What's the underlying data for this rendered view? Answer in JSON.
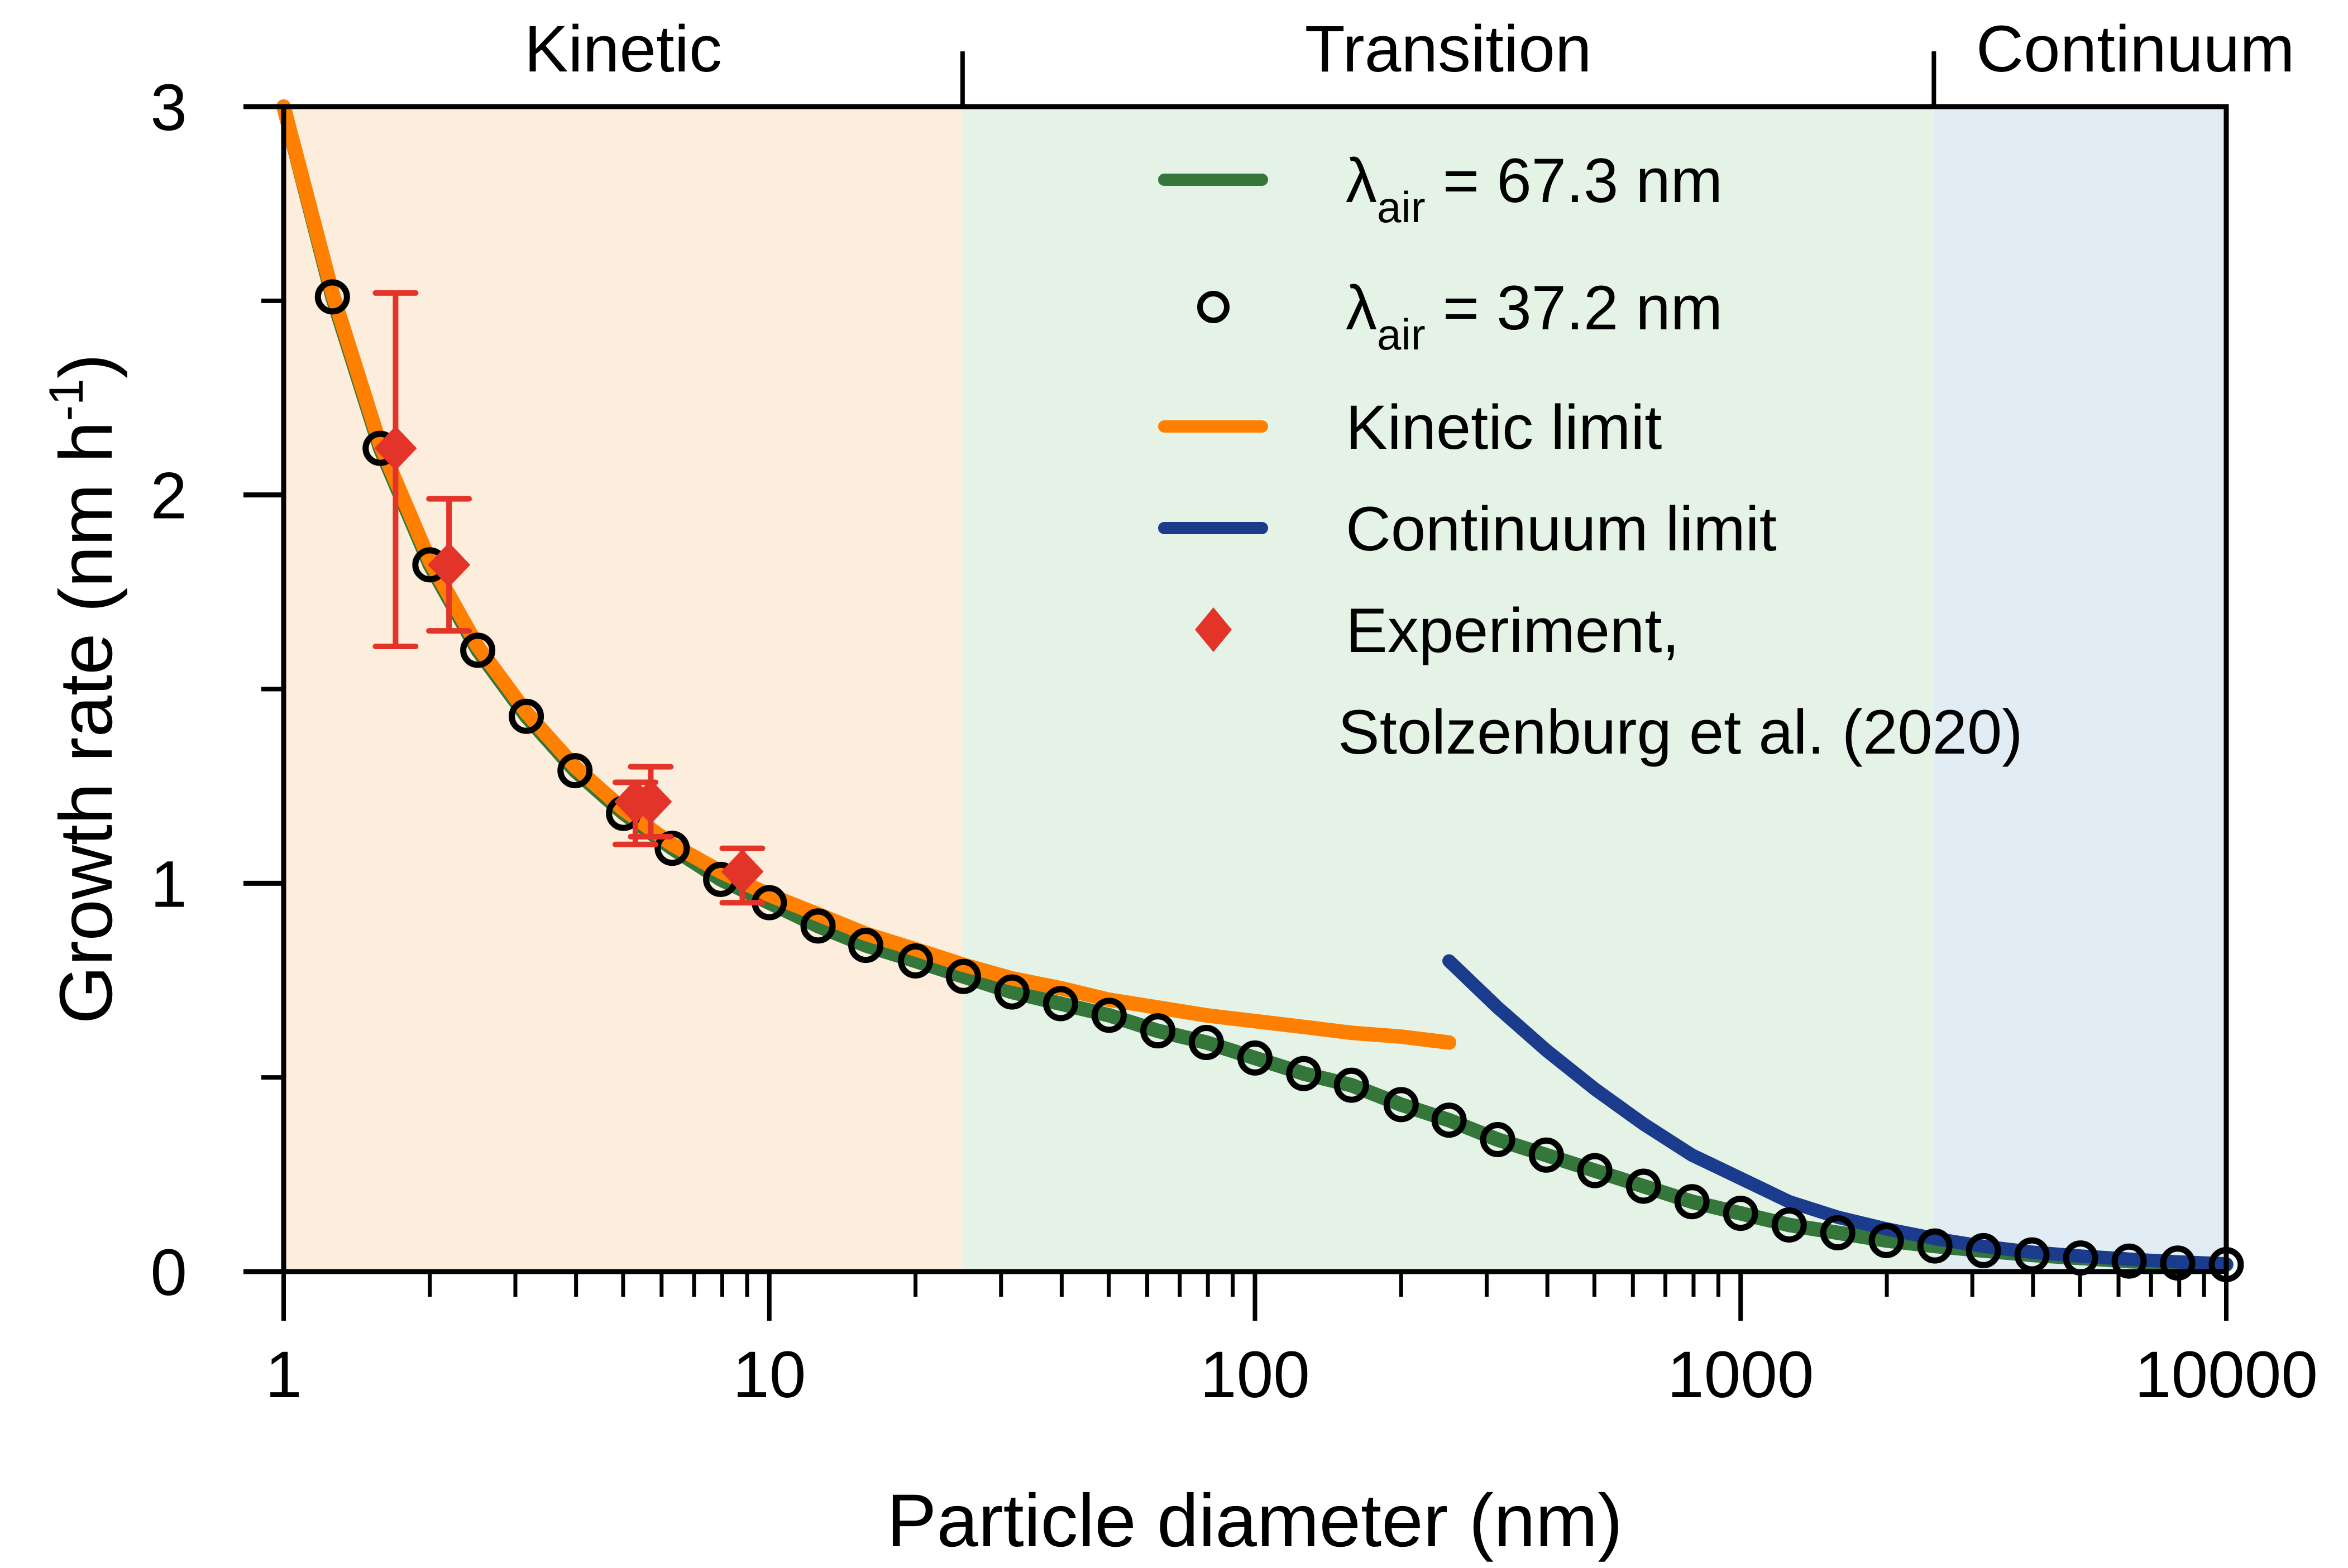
{
  "chart_data": {
    "type": "line",
    "title": "",
    "xlabel": "Particle diameter (nm)",
    "ylabel_main": "Growth rate (nm h",
    "ylabel_sup": "-1",
    "ylabel_close": ")",
    "xscale": "log",
    "xlim": [
      1,
      10000
    ],
    "ylim": [
      0,
      3
    ],
    "grid": false,
    "x_ticks": [
      1,
      10,
      100,
      1000,
      10000
    ],
    "x_tick_labels": [
      "1",
      "10",
      "100",
      "1000",
      "10000"
    ],
    "y_ticks": [
      0,
      1,
      2,
      3
    ],
    "y_tick_labels": [
      "0",
      "1",
      "2",
      "3"
    ],
    "y_minor_ticks": [
      0.5,
      1.5,
      2.5
    ],
    "regions": [
      {
        "name": "Kinetic",
        "x_start": 1,
        "x_end": 25,
        "color": "#FDEDDC"
      },
      {
        "name": "Transition",
        "x_start": 25,
        "x_end": 2500,
        "color": "#E5F3E6"
      },
      {
        "name": "Continuum",
        "x_start": 2500,
        "x_end": 10000,
        "color": "#E1ECF5"
      }
    ],
    "legend_position": "top-right",
    "series": [
      {
        "name": "λair = 67.3 nm",
        "legend_main": "λ",
        "legend_sub": "air",
        "legend_rest": " = 67.3 nm",
        "kind": "line",
        "color": "#35763A",
        "x": [
          1,
          1.26,
          1.58,
          2,
          2.51,
          3.16,
          3.98,
          5.01,
          6.31,
          7.94,
          10,
          12.6,
          15.8,
          20,
          25.1,
          31.6,
          39.8,
          50.1,
          63.1,
          79.4,
          100,
          126,
          158,
          200,
          251,
          316,
          398,
          501,
          631,
          794,
          1000,
          1259,
          1585,
          1995,
          2512,
          3162,
          3981,
          5012,
          6310,
          7943,
          10000
        ],
        "y": [
          3.0,
          2.51,
          2.12,
          1.82,
          1.6,
          1.43,
          1.29,
          1.18,
          1.09,
          1.01,
          0.95,
          0.89,
          0.84,
          0.8,
          0.76,
          0.72,
          0.69,
          0.66,
          0.62,
          0.59,
          0.55,
          0.51,
          0.48,
          0.43,
          0.39,
          0.34,
          0.3,
          0.26,
          0.22,
          0.18,
          0.15,
          0.12,
          0.1,
          0.08,
          0.066,
          0.054,
          0.043,
          0.035,
          0.027,
          0.022,
          0.018
        ]
      },
      {
        "name": "λair = 37.2 nm",
        "legend_main": "λ",
        "legend_sub": "air",
        "legend_rest": " = 37.2 nm",
        "kind": "markers",
        "marker": "open-circle",
        "color": "#000000",
        "x": [
          1.26,
          1.58,
          2,
          2.51,
          3.16,
          3.98,
          5.01,
          6.31,
          7.94,
          10,
          12.6,
          15.8,
          20,
          25.1,
          31.6,
          39.8,
          50.1,
          63.1,
          79.4,
          100,
          126,
          158,
          200,
          251,
          316,
          398,
          501,
          631,
          794,
          1000,
          1259,
          1585,
          1995,
          2512,
          3162,
          3981,
          5012,
          6310,
          7943,
          10000
        ],
        "y": [
          2.51,
          2.12,
          1.82,
          1.6,
          1.43,
          1.29,
          1.18,
          1.09,
          1.01,
          0.95,
          0.89,
          0.84,
          0.8,
          0.76,
          0.72,
          0.69,
          0.66,
          0.62,
          0.59,
          0.55,
          0.51,
          0.48,
          0.43,
          0.39,
          0.34,
          0.3,
          0.26,
          0.22,
          0.18,
          0.15,
          0.12,
          0.1,
          0.08,
          0.066,
          0.054,
          0.043,
          0.035,
          0.027,
          0.022,
          0.018
        ]
      },
      {
        "name": "Kinetic limit",
        "legend_main": "Kinetic limit",
        "kind": "line",
        "color": "#FF8000",
        "x": [
          1,
          1.26,
          1.58,
          2,
          2.51,
          3.16,
          3.98,
          5.01,
          6.31,
          7.94,
          10,
          12.6,
          15.8,
          20,
          25.1,
          31.6,
          39.8,
          50.1,
          63.1,
          79.4,
          100,
          126,
          158,
          200,
          251
        ],
        "y": [
          3.0,
          2.52,
          2.13,
          1.83,
          1.61,
          1.44,
          1.3,
          1.19,
          1.1,
          1.03,
          0.97,
          0.92,
          0.87,
          0.83,
          0.79,
          0.755,
          0.73,
          0.7,
          0.68,
          0.66,
          0.645,
          0.63,
          0.615,
          0.605,
          0.59
        ]
      },
      {
        "name": "Continuum limit",
        "legend_main": "Continuum limit",
        "kind": "line",
        "color": "#1B3B8C",
        "x": [
          251,
          316,
          398,
          501,
          631,
          794,
          1000,
          1259,
          1585,
          1995,
          2512,
          3162,
          3981,
          5012,
          6310,
          7943,
          10000
        ],
        "y": [
          0.8,
          0.68,
          0.57,
          0.47,
          0.38,
          0.3,
          0.24,
          0.18,
          0.14,
          0.11,
          0.085,
          0.065,
          0.05,
          0.04,
          0.032,
          0.025,
          0.02
        ]
      },
      {
        "name": "Experiment, Stolzenburg et al. (2020)",
        "legend_main": "Experiment,",
        "legend_line2": "Stolzenburg et al. (2020)",
        "kind": "errorbar",
        "marker": "diamond",
        "color": "#E3342A",
        "x": [
          1.7,
          2.19,
          5.3,
          5.7,
          8.8
        ],
        "y": [
          2.12,
          1.82,
          1.21,
          1.21,
          1.03
        ],
        "y_err_low": [
          1.61,
          1.65,
          1.1,
          1.12,
          0.95
        ],
        "y_err_high": [
          2.52,
          1.99,
          1.26,
          1.3,
          1.09
        ]
      }
    ]
  }
}
